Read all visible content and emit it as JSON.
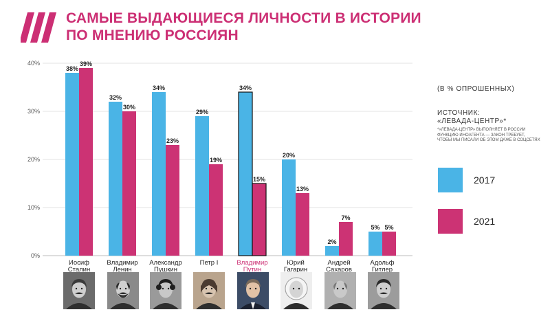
{
  "header": {
    "title_line1": "САМЫЕ ВЫДАЮЩИЕСЯ ЛИЧНОСТИ В ИСТОРИИ",
    "title_line2": "ПО МНЕНИЮ РОССИЯН",
    "logo_icon": "triple-slash-logo-icon",
    "accent_color": "#cc2f74"
  },
  "side": {
    "units": "(В % ОПРОШЕННЫХ)",
    "source_line1": "ИСТОЧНИК:",
    "source_line2": "«ЛЕВАДА-ЦЕНТР»*",
    "disclaimer": "*«ЛЕВАДА-ЦЕНТР» ВЫПОЛНЯЕТ В РОССИИ ФУНКЦИЮ ИНОАГЕНТА — ЗАКОН ТРЕБУЕТ, ЧТОБЫ МЫ ПИСАЛИ ОБ ЭТОМ ДАЖЕ В СОЦСЕТЯХ"
  },
  "legend": [
    {
      "label": "2017",
      "color": "#4ab4e6"
    },
    {
      "label": "2021",
      "color": "#cc3374"
    }
  ],
  "chart_data": {
    "type": "bar",
    "categories": [
      [
        "Иосиф",
        "Сталин"
      ],
      [
        "Владимир",
        "Ленин"
      ],
      [
        "Александр",
        "Пушкин"
      ],
      [
        "Петр I"
      ],
      [
        "Владимир",
        "Путин"
      ],
      [
        "Юрий",
        "Гагарин"
      ],
      [
        "Андрей",
        "Сахаров"
      ],
      [
        "Адольф",
        "Гитлер"
      ]
    ],
    "highlight_category": 4,
    "highlight_color": "#cc2f74",
    "series": [
      {
        "name": "2017",
        "color": "#4ab4e6",
        "values": [
          38,
          32,
          34,
          29,
          34,
          20,
          2,
          5
        ]
      },
      {
        "name": "2021",
        "color": "#cc3374",
        "values": [
          39,
          30,
          23,
          19,
          15,
          13,
          7,
          5
        ]
      }
    ],
    "data_labels": [
      [
        "38%",
        "32%",
        "34%",
        "29%",
        "34%",
        "20%",
        "2%",
        "5%"
      ],
      [
        "39%",
        "30%",
        "23%",
        "19%",
        "15%",
        "13%",
        "7%",
        "5%"
      ]
    ],
    "yticks": [
      0,
      10,
      20,
      30,
      40
    ],
    "ytick_labels": [
      "0%",
      "10%",
      "20%",
      "30%",
      "40%"
    ],
    "ylim": [
      0,
      40
    ],
    "grid": true,
    "outlined_category": 4,
    "portrait_icons": [
      "stalin-portrait-icon",
      "lenin-portrait-icon",
      "pushkin-portrait-icon",
      "peter-portrait-icon",
      "putin-portrait-icon",
      "gagarin-portrait-icon",
      "sakharov-portrait-icon",
      "hitler-portrait-icon"
    ]
  }
}
